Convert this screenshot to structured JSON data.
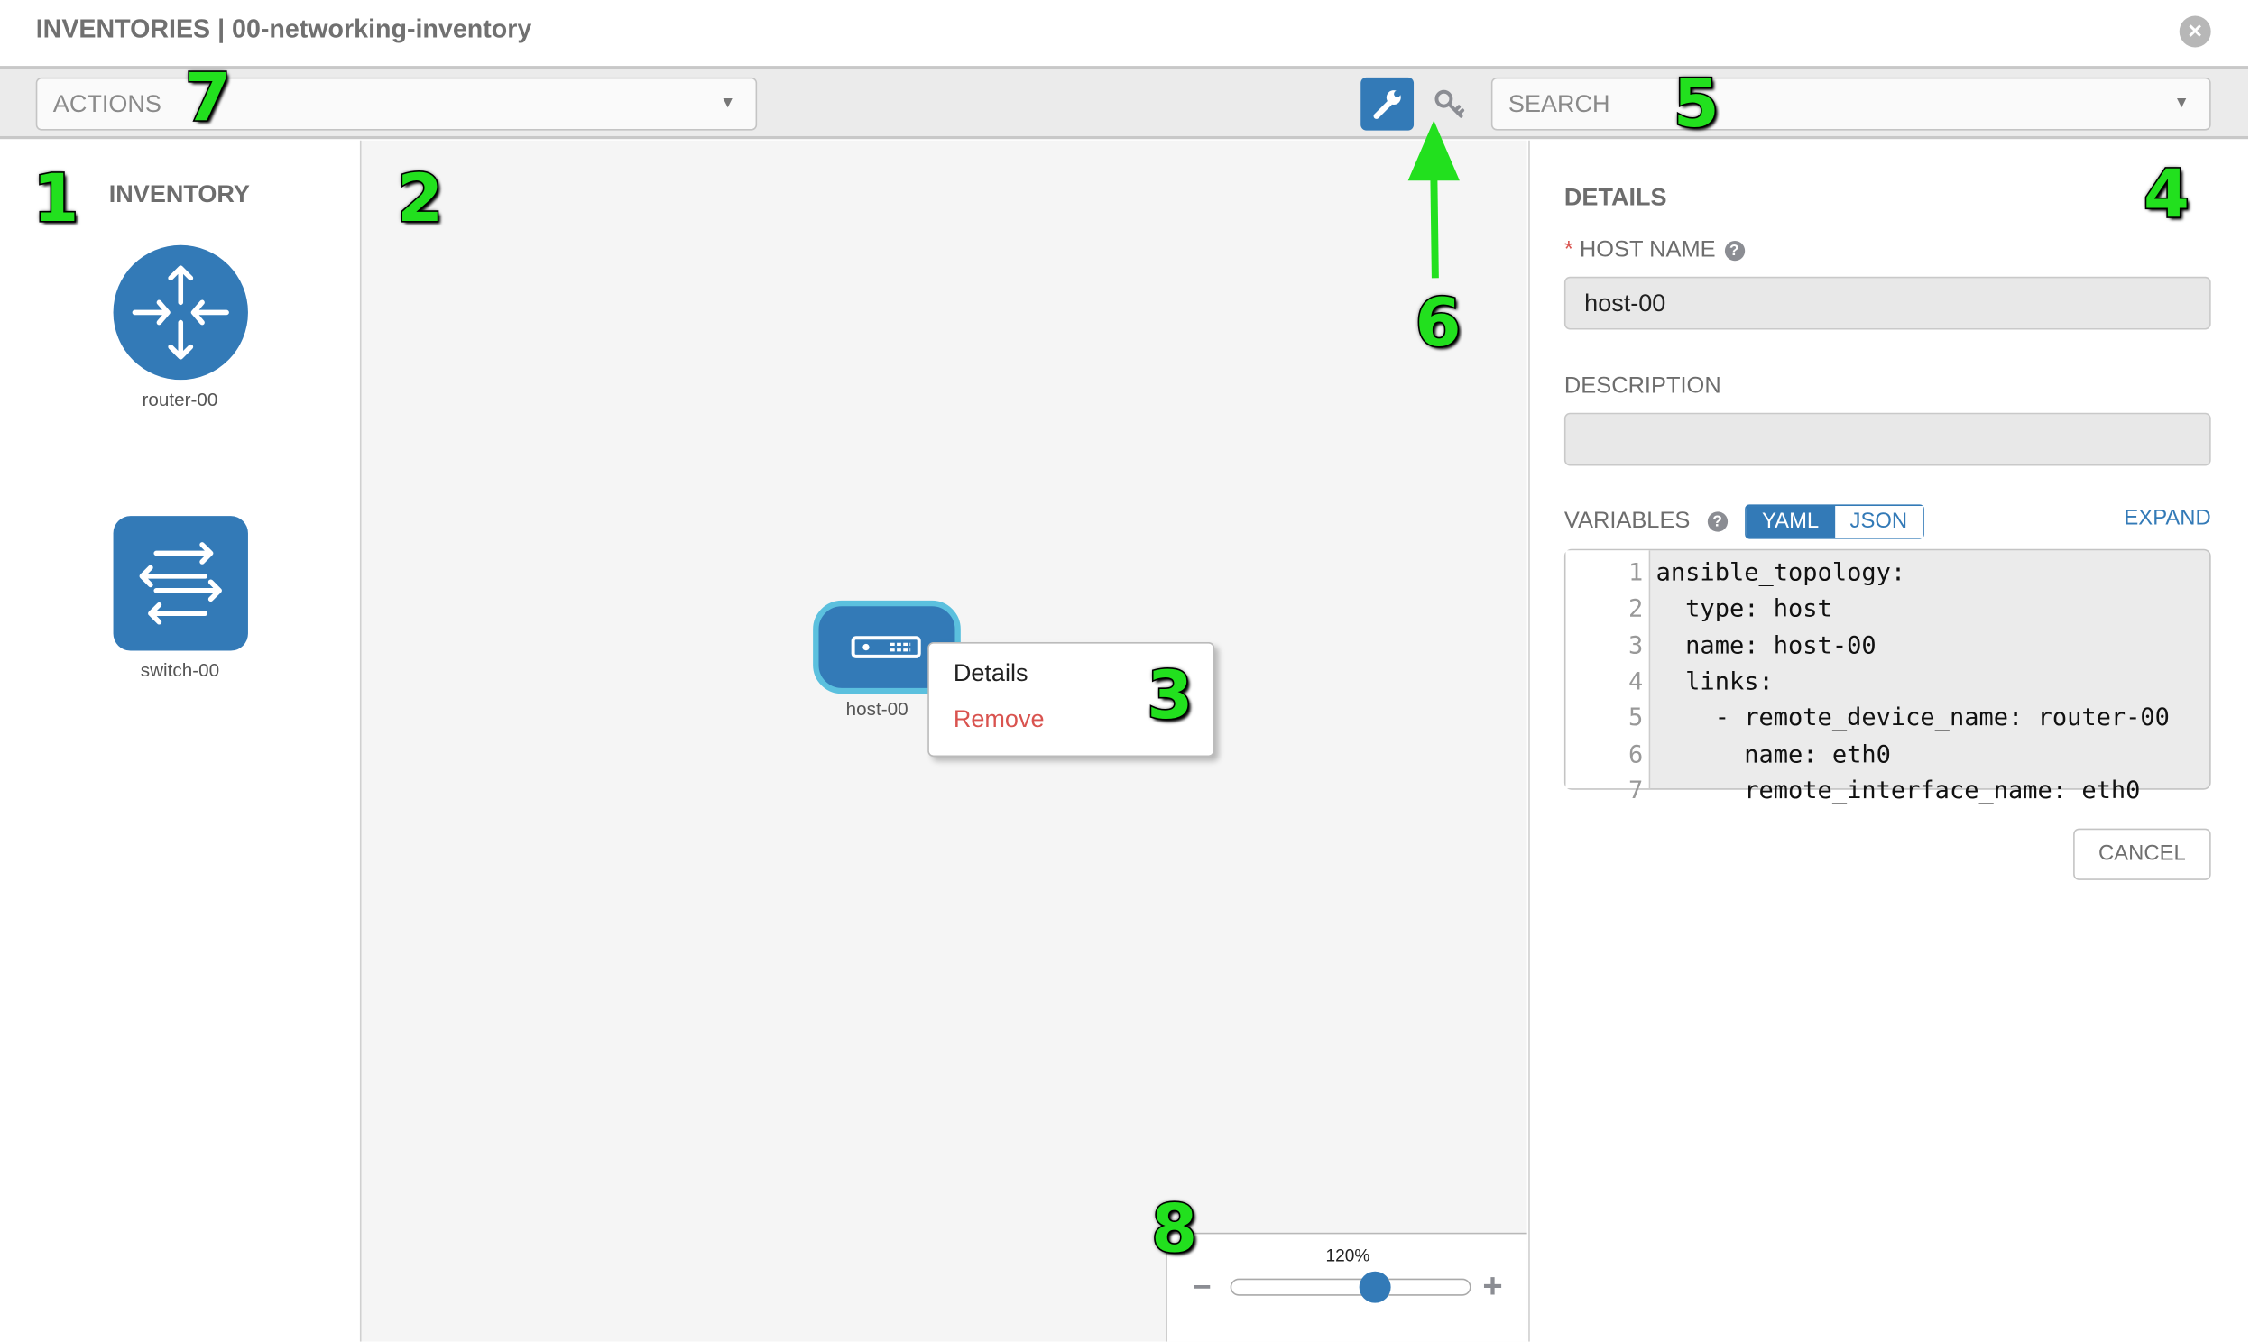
{
  "header": {
    "title": "INVENTORIES | 00-networking-inventory",
    "close_icon": "close-circle-icon"
  },
  "toolbar": {
    "actions_placeholder": "ACTIONS",
    "search_placeholder": "SEARCH",
    "wrench_icon": "wrench-icon",
    "key_icon": "key-icon"
  },
  "inventory": {
    "title": "INVENTORY",
    "items": [
      {
        "label": "router-00",
        "icon": "router-icon"
      },
      {
        "label": "switch-00",
        "icon": "switch-icon"
      }
    ]
  },
  "canvas": {
    "node": {
      "label": "host-00",
      "icon": "host-server-icon"
    },
    "context_menu": {
      "details": "Details",
      "remove": "Remove"
    },
    "zoom": {
      "label": "120%",
      "value_percent": 120,
      "minus": "−",
      "plus": "+"
    }
  },
  "details": {
    "title": "DETAILS",
    "required_mark": "*",
    "host_name_label": "HOST NAME",
    "host_name_value": "host-00",
    "description_label": "DESCRIPTION",
    "description_value": "",
    "variables_label": "VARIABLES",
    "help": "?",
    "yaml": "YAML",
    "json": "JSON",
    "expand": "EXPAND",
    "code_lines": [
      "ansible_topology:",
      "  type: host",
      "  name: host-00",
      "  links:",
      "    - remote_device_name: router-00",
      "      name: eth0",
      "      remote_interface_name: eth0"
    ],
    "cancel": "CANCEL"
  },
  "colors": {
    "primary": "#337ab7",
    "node_border": "#5bc0de",
    "danger": "#d9534f",
    "annotation": "#22e01e"
  },
  "annotations": [
    "1",
    "2",
    "3",
    "4",
    "5",
    "6",
    "7",
    "8"
  ]
}
